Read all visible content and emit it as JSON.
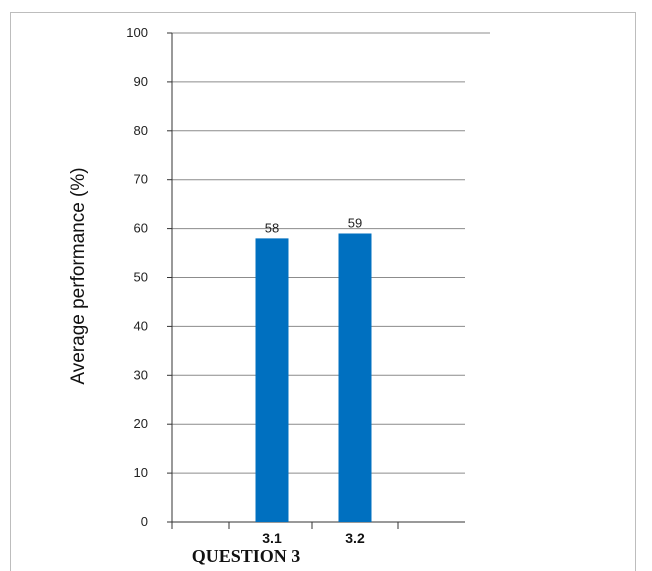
{
  "chart_data": {
    "type": "bar",
    "categories": [
      "3.1",
      "3.2"
    ],
    "values": [
      58,
      59
    ],
    "data_labels": [
      "58",
      "59"
    ],
    "title": "",
    "xlabel": "QUESTION 3",
    "ylabel": "Average performance (%)",
    "ylim": [
      0,
      100
    ],
    "yticks": [
      0,
      10,
      20,
      30,
      40,
      50,
      60,
      70,
      80,
      90,
      100
    ],
    "grid": true,
    "bar_color": "#0070C0"
  }
}
